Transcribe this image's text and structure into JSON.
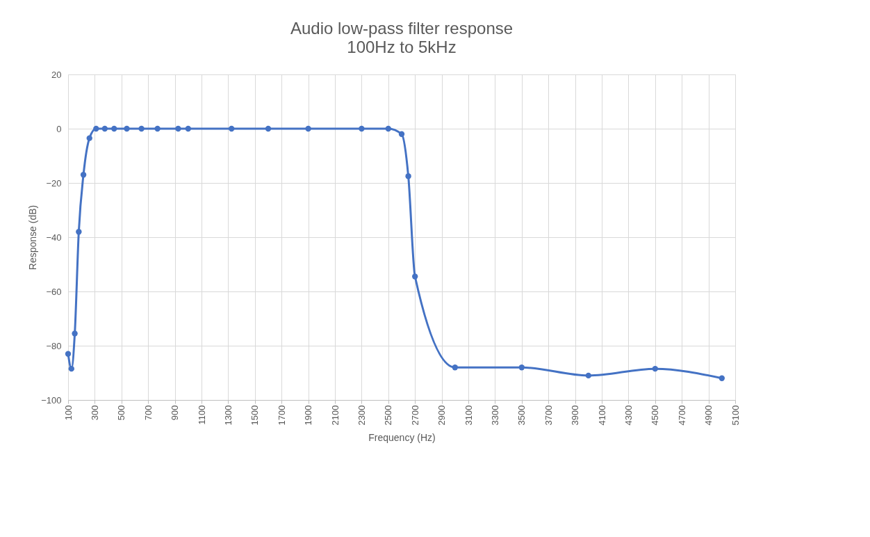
{
  "chart_data": {
    "type": "line",
    "title": "Audio low-pass filter response",
    "subtitle": "100Hz to 5kHz",
    "xlabel": "Frequency (Hz)",
    "ylabel": "Response (dB)",
    "x": [
      100,
      125,
      150,
      180,
      215,
      260,
      310,
      375,
      445,
      540,
      650,
      770,
      925,
      1000,
      1325,
      1600,
      1900,
      2300,
      2500,
      2600,
      2650,
      2700,
      3000,
      3500,
      4000,
      4500,
      5000
    ],
    "series": [
      {
        "color": "#4472c4",
        "values": [
          -83,
          -88.5,
          -75.5,
          -38,
          -17,
          -3.5,
          0,
          0,
          0,
          0,
          0,
          0,
          0,
          0,
          0,
          0,
          0,
          0,
          0,
          -2,
          -17.5,
          -54.5,
          -88,
          -88,
          -91,
          -88.5,
          -92
        ]
      }
    ],
    "xlim": [
      100,
      5100
    ],
    "xticks": [
      100,
      300,
      500,
      700,
      900,
      1100,
      1300,
      1500,
      1700,
      1900,
      2100,
      2300,
      2500,
      2700,
      2900,
      3100,
      3300,
      3500,
      3700,
      3900,
      4100,
      4300,
      4500,
      4700,
      4900,
      5100
    ],
    "ylim": [
      -100,
      20
    ],
    "yticks": [
      -100,
      -80,
      -60,
      -40,
      -20,
      0,
      20
    ],
    "grid": true,
    "marker": "circle",
    "line_style": "solid",
    "legend": false
  }
}
